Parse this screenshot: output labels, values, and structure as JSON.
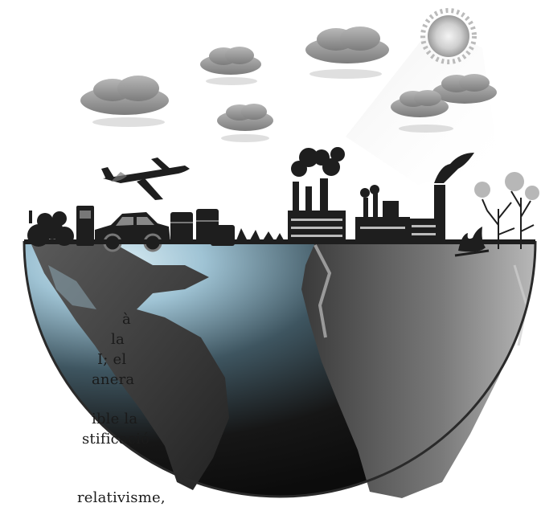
{
  "text_fragment": {
    "lines": [
      "à",
      "la",
      "I; el",
      "anera",
      "ible  la",
      "stificació",
      "relativisme,"
    ]
  },
  "scene": {
    "objects": [
      "sun",
      "clouds",
      "airplane",
      "car",
      "factories",
      "smokestacks",
      "barrels",
      "trees",
      "fire",
      "globe",
      "continents"
    ],
    "colors": {
      "sky_cloud": "#8f8f8f",
      "silhouette": "#1e1e1e",
      "ocean_light": "#9fc3d4",
      "ocean_dark": "#161616",
      "land": "#2a2a2a"
    }
  }
}
